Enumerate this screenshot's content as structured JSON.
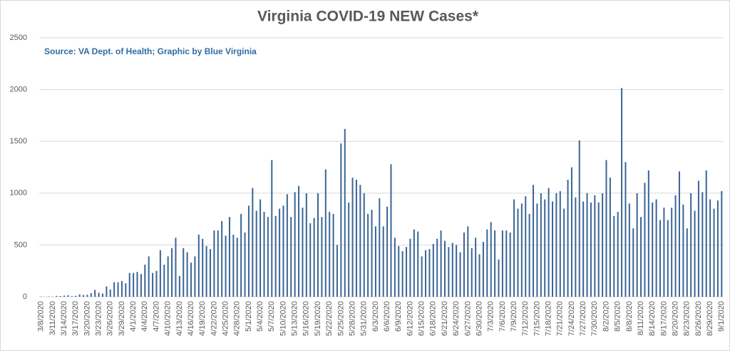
{
  "chart_data": {
    "type": "bar",
    "title": "Virginia COVID-19 NEW Cases*",
    "subtitle": "Source: VA Dept. of Health; Graphic by Blue Virginia",
    "color": "#3a6595",
    "grid": true,
    "ylim": [
      0,
      2500
    ],
    "yticks": [
      0,
      500,
      1000,
      1500,
      2000,
      2500
    ],
    "categories": [
      "3/8/2020",
      null,
      null,
      "3/11/2020",
      null,
      null,
      "3/14/2020",
      null,
      null,
      "3/17/2020",
      null,
      null,
      "3/20/2020",
      null,
      null,
      "3/23/2020",
      null,
      null,
      "3/26/2020",
      null,
      null,
      "3/29/2020",
      null,
      null,
      "4/1/2020",
      null,
      null,
      "4/4/2020",
      null,
      null,
      "4/7/2020",
      null,
      null,
      "4/10/2020",
      null,
      null,
      "4/13/2020",
      null,
      null,
      "4/16/2020",
      null,
      null,
      "4/19/2020",
      null,
      null,
      "4/22/2020",
      null,
      null,
      "4/25/2020",
      null,
      null,
      "4/28/2020",
      null,
      null,
      "5/1/2020",
      null,
      null,
      "5/4/2020",
      null,
      null,
      "5/7/2020",
      null,
      null,
      "5/10/2020",
      null,
      null,
      "5/13/2020",
      null,
      null,
      "5/16/2020",
      null,
      null,
      "5/19/2020",
      null,
      null,
      "5/22/2020",
      null,
      null,
      "5/25/2020",
      null,
      null,
      "5/28/2020",
      null,
      null,
      "5/31/2020",
      null,
      null,
      "6/3/2020",
      null,
      null,
      "6/6/2020",
      null,
      null,
      "6/9/2020",
      null,
      null,
      "6/12/2020",
      null,
      null,
      "6/15/2020",
      null,
      null,
      "6/18/2020",
      null,
      null,
      "6/21/2020",
      null,
      null,
      "6/24/2020",
      null,
      null,
      "6/27/2020",
      null,
      null,
      "6/30/2020",
      null,
      null,
      "7/3/2020",
      null,
      null,
      "7/6/2020",
      null,
      null,
      "7/9/2020",
      null,
      null,
      "7/12/2020",
      null,
      null,
      "7/15/2020",
      null,
      null,
      "7/18/2020",
      null,
      null,
      "7/21/2020",
      null,
      null,
      "7/24/2020",
      null,
      null,
      "7/27/2020",
      null,
      null,
      "7/30/2020",
      null,
      null,
      "8/2/2020",
      null,
      null,
      "8/5/2020",
      null,
      null,
      "8/8/2020",
      null,
      null,
      "8/11/2020",
      null,
      null,
      "8/14/2020",
      null,
      null,
      "8/17/2020",
      null,
      null,
      "8/20/2020",
      null,
      null,
      "8/23/2020",
      null,
      null,
      "8/26/2020",
      null,
      null,
      "8/29/2020",
      null,
      null,
      "9/1/2020"
    ],
    "values": [
      2,
      0,
      3,
      1,
      8,
      7,
      11,
      15,
      6,
      9,
      22,
      17,
      19,
      35,
      66,
      39,
      31,
      100,
      70,
      141,
      139,
      152,
      130,
      230,
      230,
      240,
      220,
      310,
      390,
      230,
      250,
      450,
      310,
      390,
      470,
      570,
      200,
      470,
      430,
      330,
      390,
      600,
      560,
      490,
      460,
      640,
      640,
      730,
      590,
      770,
      600,
      570,
      800,
      620,
      880,
      1050,
      830,
      940,
      820,
      770,
      1320,
      780,
      850,
      880,
      990,
      770,
      1010,
      1070,
      860,
      1000,
      710,
      760,
      1000,
      770,
      1230,
      820,
      800,
      500,
      1480,
      1620,
      910,
      1150,
      1130,
      1080,
      1000,
      800,
      840,
      680,
      950,
      680,
      870,
      1280,
      570,
      490,
      440,
      480,
      560,
      650,
      630,
      390,
      450,
      460,
      510,
      560,
      640,
      540,
      480,
      520,
      500,
      430,
      620,
      680,
      470,
      570,
      410,
      530,
      650,
      720,
      640,
      360,
      640,
      640,
      620,
      940,
      850,
      900,
      970,
      800,
      1080,
      900,
      1000,
      940,
      1050,
      920,
      1000,
      1020,
      850,
      1130,
      1250,
      960,
      1510,
      920,
      1000,
      910,
      980,
      910,
      1000,
      1320,
      1150,
      780,
      820,
      2015,
      1300,
      900,
      660,
      1000,
      770,
      1100,
      1220,
      910,
      940,
      740,
      860,
      740,
      860,
      980,
      1210,
      890,
      660,
      1000,
      830,
      1120,
      1010,
      1220,
      940,
      850,
      930,
      1020
    ]
  }
}
